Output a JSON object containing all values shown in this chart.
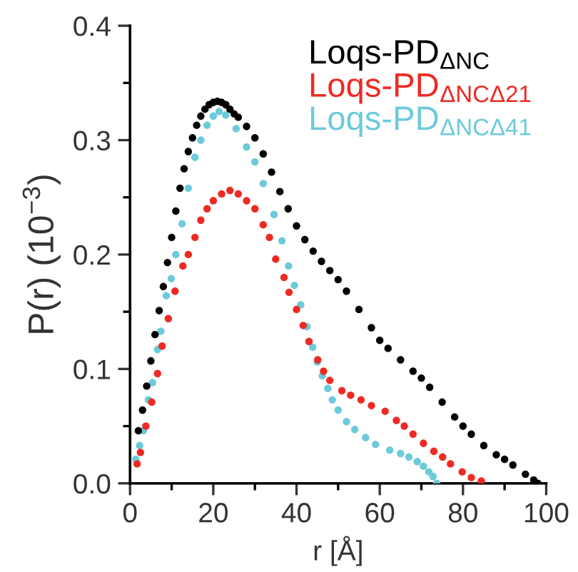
{
  "chart_data": {
    "type": "scatter",
    "xlabel": "r [Å]",
    "ylabel": "P(r) (10$^{−3}$)",
    "xlim": [
      0,
      100
    ],
    "ylim": [
      0,
      0.4
    ],
    "xticks": [
      0,
      {
        "value": 10,
        "label": null
      },
      20,
      {
        "value": 30,
        "label": null
      },
      40,
      {
        "value": 50,
        "label": null
      },
      60,
      {
        "value": 70,
        "label": null
      },
      80,
      {
        "value": 90,
        "label": null
      },
      100
    ],
    "yticks": [
      {
        "value": 0,
        "label": "0.0"
      },
      {
        "value": 0.05,
        "label": null
      },
      {
        "value": 0.1,
        "label": "0.1"
      },
      {
        "value": 0.15,
        "label": null
      },
      {
        "value": 0.2,
        "label": "0.2"
      },
      {
        "value": 0.25,
        "label": null
      },
      {
        "value": 0.3,
        "label": "0.3"
      },
      {
        "value": 0.35,
        "label": null
      },
      {
        "value": 0.4,
        "label": "0.4"
      }
    ],
    "marker": "circle",
    "grid": false,
    "legend": "top right",
    "series": [
      {
        "name": "Loqs-PD$_{ΔNC}$",
        "color": "#000000",
        "x": [
          2,
          3,
          4,
          5,
          6,
          7,
          8,
          9,
          10,
          11,
          12,
          13,
          14,
          15,
          16,
          17,
          18,
          19,
          20,
          21,
          22,
          23,
          24,
          25,
          26,
          28,
          30,
          32,
          34,
          36,
          38,
          40,
          42,
          44,
          46,
          48,
          50,
          52,
          55,
          58,
          60,
          62,
          65,
          68,
          70,
          72,
          75,
          78,
          80,
          82,
          85,
          88,
          90,
          92,
          95,
          97,
          98
        ],
        "values": [
          0.046,
          0.064,
          0.085,
          0.107,
          0.13,
          0.151,
          0.172,
          0.193,
          0.215,
          0.238,
          0.258,
          0.275,
          0.29,
          0.302,
          0.313,
          0.321,
          0.327,
          0.331,
          0.333,
          0.334,
          0.333,
          0.331,
          0.327,
          0.323,
          0.32,
          0.312,
          0.302,
          0.288,
          0.272,
          0.255,
          0.24,
          0.225,
          0.213,
          0.203,
          0.194,
          0.186,
          0.178,
          0.168,
          0.152,
          0.136,
          0.125,
          0.118,
          0.108,
          0.098,
          0.092,
          0.084,
          0.071,
          0.058,
          0.05,
          0.043,
          0.033,
          0.025,
          0.021,
          0.016,
          0.008,
          0.003,
          0.0
        ]
      },
      {
        "name": "Loqs-PD$_{ΔNCΔ21}$",
        "color": "#ee2a24",
        "x": [
          1.7,
          2.5,
          3.8,
          5.2,
          6.6,
          7.7,
          9.2,
          10.8,
          12.7,
          14,
          15.6,
          17,
          18.5,
          20,
          22,
          24,
          26,
          28,
          30,
          32,
          33.5,
          35,
          37,
          38.2,
          40,
          41.6,
          43,
          45.1,
          46.5,
          48,
          50.9,
          53,
          55.5,
          58,
          61.3,
          64,
          65.9,
          68,
          70.5,
          73,
          75.1,
          77,
          79.8,
          82,
          84.4
        ],
        "values": [
          0.017,
          0.027,
          0.05,
          0.071,
          0.096,
          0.12,
          0.144,
          0.168,
          0.19,
          0.2,
          0.215,
          0.23,
          0.24,
          0.247,
          0.253,
          0.256,
          0.253,
          0.247,
          0.24,
          0.226,
          0.215,
          0.196,
          0.18,
          0.167,
          0.152,
          0.138,
          0.124,
          0.108,
          0.098,
          0.09,
          0.081,
          0.077,
          0.073,
          0.068,
          0.063,
          0.055,
          0.05,
          0.043,
          0.035,
          0.028,
          0.023,
          0.017,
          0.01,
          0.005,
          0.002
        ]
      },
      {
        "name": "Loqs-PD$_{ΔNCΔ41}$",
        "color": "#6ccadb",
        "x": [
          1.4,
          2.3,
          3.2,
          4.4,
          5.4,
          6.6,
          7.4,
          8.7,
          9.9,
          11,
          12.5,
          14,
          15.6,
          17,
          18.5,
          20,
          21.4,
          23,
          25.5,
          28,
          30,
          32,
          34.6,
          36.5,
          38.1,
          39.5,
          41,
          42.5,
          43.9,
          45,
          46.2,
          47.5,
          48.6,
          50,
          52,
          54,
          56.6,
          59,
          62.4,
          65,
          67,
          69,
          70.5,
          71.8,
          72.8,
          73.7
        ],
        "values": [
          0.021,
          0.033,
          0.046,
          0.073,
          0.088,
          0.117,
          0.133,
          0.164,
          0.179,
          0.2,
          0.227,
          0.258,
          0.285,
          0.3,
          0.313,
          0.321,
          0.325,
          0.322,
          0.31,
          0.294,
          0.281,
          0.262,
          0.235,
          0.212,
          0.19,
          0.173,
          0.156,
          0.137,
          0.119,
          0.106,
          0.094,
          0.083,
          0.073,
          0.064,
          0.054,
          0.047,
          0.04,
          0.034,
          0.029,
          0.026,
          0.023,
          0.019,
          0.015,
          0.01,
          0.006,
          0.0
        ]
      }
    ]
  }
}
